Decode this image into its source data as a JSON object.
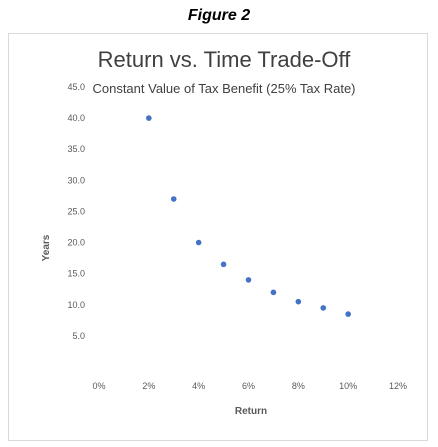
{
  "figure_label": "Figure 2",
  "chart_data": {
    "type": "scatter",
    "title": "Return vs. Time Trade-Off",
    "subtitle": "Constant Value of Tax Benefit (25% Tax Rate)",
    "xlabel": "Return",
    "ylabel": "Years",
    "xlim": [
      0,
      0.12
    ],
    "ylim": [
      0,
      45
    ],
    "x_ticks": [
      "0%",
      "2%",
      "4%",
      "6%",
      "8%",
      "10%",
      "12%"
    ],
    "x_tick_values": [
      0,
      0.02,
      0.04,
      0.06,
      0.08,
      0.1,
      0.12
    ],
    "y_ticks": [
      "5.0",
      "10.0",
      "15.0",
      "20.0",
      "25.0",
      "30.0",
      "35.0",
      "40.0",
      "45.0"
    ],
    "y_tick_values": [
      5,
      10,
      15,
      20,
      25,
      30,
      35,
      40,
      45
    ],
    "grid": false,
    "marker_color": "#4472C4",
    "points": [
      {
        "x": 0.02,
        "y": 40.0
      },
      {
        "x": 0.03,
        "y": 27.0
      },
      {
        "x": 0.04,
        "y": 20.0
      },
      {
        "x": 0.05,
        "y": 16.5
      },
      {
        "x": 0.06,
        "y": 14.0
      },
      {
        "x": 0.07,
        "y": 12.0
      },
      {
        "x": 0.08,
        "y": 10.5
      },
      {
        "x": 0.09,
        "y": 9.5
      },
      {
        "x": 0.1,
        "y": 8.5
      }
    ]
  }
}
